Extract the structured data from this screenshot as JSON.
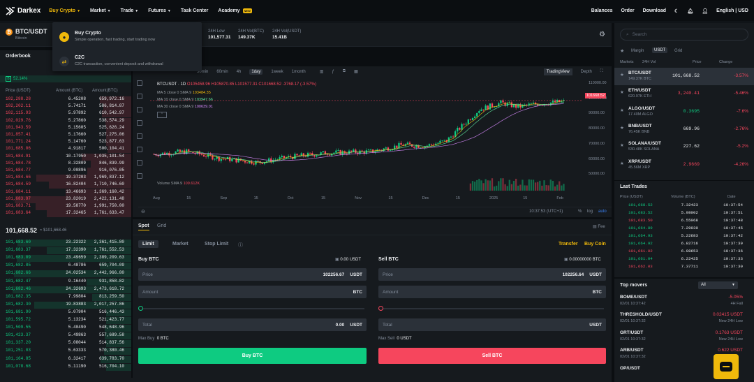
{
  "nav": {
    "logo": "Darkex",
    "items": [
      "Buy Crypto",
      "Market",
      "Trade",
      "Futures",
      "Task Center",
      "Academy"
    ],
    "academy_badge": "NEW",
    "right": [
      "Balances",
      "Order",
      "Download"
    ],
    "lang": "English | USD"
  },
  "dropdown": {
    "items": [
      {
        "title": "Buy Crypto",
        "sub": "Simple operation, fast trading, start trading now"
      },
      {
        "title": "C2C",
        "sub": "C2C transaction, convenient deposit and withdrawal"
      }
    ]
  },
  "pair": {
    "symbol": "BTC/USDT",
    "name": "Bitcoin",
    "stats": [
      {
        "label": "24H Low",
        "value": "101,577.31"
      },
      {
        "label": "24H Vol(BTC)",
        "value": "149.37K"
      },
      {
        "label": "24H Vol(USDT)",
        "value": "15.41B"
      }
    ]
  },
  "orderbook": {
    "title": "Orderbook",
    "ratio": "52.14%",
    "headers": [
      "Price (USDT)",
      "Amount (BTC)",
      "Amount(BTC)"
    ],
    "asks": [
      [
        "102,288.28",
        "6.45208",
        "659,972.16"
      ],
      [
        "102,202.11",
        "5.74171",
        "586,814.87"
      ],
      [
        "102,115.93",
        "5.97892",
        "610,542.97"
      ],
      [
        "102,029.76",
        "5.27860",
        "538,574.29"
      ],
      [
        "101,943.59",
        "5.15605",
        "525,626.24"
      ],
      [
        "101,857.41",
        "5.17660",
        "527,275.06"
      ],
      [
        "101,771.24",
        "5.14760",
        "523,877.63"
      ],
      [
        "101,685.06",
        "4.91817",
        "500,104.41"
      ],
      [
        "101,684.91",
        "10.17950",
        "1,035,101.54"
      ],
      [
        "101,684.78",
        "8.32809",
        "846,839.99"
      ],
      [
        "101,684.77",
        "9.00896",
        "916,076.05"
      ],
      [
        "101,684.66",
        "19.37203",
        "1,969,837.12"
      ],
      [
        "101,684.59",
        "16.82404",
        "1,710,746.60"
      ],
      [
        "101,684.11",
        "13.46693",
        "1,369,160.42"
      ],
      [
        "101,683.97",
        "23.82019",
        "2,422,131.48"
      ],
      [
        "101,683.71",
        "19.58770",
        "1,991,750.00"
      ],
      [
        "101,683.64",
        "17.32465",
        "1,761,633.47"
      ]
    ],
    "mid_price": "101,668.52",
    "mid_usd": "≈ $101,668.46",
    "bids": [
      [
        "101,683.60",
        "23.22322",
        "2,361,415.80"
      ],
      [
        "101,683.37",
        "17.32390",
        "1,761,552.53"
      ],
      [
        "101,683.09",
        "23.49659",
        "2,389,209.63"
      ],
      [
        "101,682.85",
        "6.48786",
        "659,704.09"
      ],
      [
        "101,682.66",
        "24.02534",
        "2,442,966.80"
      ],
      [
        "101,682.47",
        "9.16440",
        "931,858.82"
      ],
      [
        "101,682.46",
        "24.32693",
        "2,473,618.72"
      ],
      [
        "101,682.35",
        "7.99804",
        "813,259.50"
      ],
      [
        "101,682.30",
        "19.83883",
        "2,017,257.86"
      ],
      [
        "101,681.90",
        "5.07904",
        "516,446.43"
      ],
      [
        "101,595.72",
        "5.13234",
        "521,423.77"
      ],
      [
        "101,509.55",
        "5.40490",
        "548,648.96"
      ],
      [
        "101,423.37",
        "5.49863",
        "557,689.58"
      ],
      [
        "101,337.20",
        "5.08044",
        "514,837.56"
      ],
      [
        "101,251.03",
        "5.63333",
        "570,380.46"
      ],
      [
        "101,164.85",
        "6.32417",
        "639,783.70"
      ],
      [
        "101,078.68",
        "5.11190",
        "516,704.10"
      ]
    ]
  },
  "chart": {
    "timeframes": [
      "Time",
      "30min",
      "60min",
      "4h",
      "1day",
      "1week",
      "1month"
    ],
    "selected_tf": "1day",
    "views": [
      "TradingView",
      "Depth"
    ],
    "ohlc_title": "BTCUSDT · 1D",
    "ohlc": "O105458.96 H105870.85 L101577.31 C101668.52 -3768.17 (-3.57%)",
    "ma": [
      {
        "label": "MA 5 close 0 SMA 9",
        "val": "103484.35",
        "color": "#f0b90b"
      },
      {
        "label": "MA 10 close 0 SMA 9",
        "val": "103947.66",
        "color": "#5ee9a0"
      },
      {
        "label": "MA 30 close 0 SMA 9",
        "val": "100639.01",
        "color": "#d98bff"
      }
    ],
    "volume_label": "Volume SMA 9",
    "volume_val": "109.612K",
    "y_ticks": [
      "110000.00",
      "100000.00",
      "90000.00",
      "80000.00",
      "70000.00",
      "60000.00",
      "50000.00"
    ],
    "current_price": "101668.52",
    "x_ticks": [
      "Aug",
      "15",
      "Sep",
      "15",
      "Oct",
      "15",
      "Nov",
      "15",
      "Dec",
      "15",
      "2025",
      "15",
      "Feb"
    ],
    "time_readout": "10:37:53 (UTC+1)",
    "scale_opts": [
      "%",
      "log",
      "auto"
    ]
  },
  "trade": {
    "tabs": [
      "Spot",
      "Grid"
    ],
    "fee": "Fee",
    "types": [
      "Limit",
      "Market",
      "Stop Limit"
    ],
    "transfer": "Transfer",
    "buy_coin": "Buy Coin",
    "buy": {
      "title": "Buy BTC",
      "avail": "0.00 USDT",
      "price": "102256.67",
      "price_unit": "USDT",
      "amount_unit": "BTC",
      "total": "0.00",
      "total_unit": "USDT",
      "max_label": "Max Buy",
      "max_val": "0 BTC",
      "btn": "Buy BTC"
    },
    "sell": {
      "title": "Sell BTC",
      "avail": "0.00000000 BTC",
      "price": "102256.64",
      "price_unit": "USDT",
      "amount_unit": "BTC",
      "total": "",
      "total_unit": "USDT",
      "max_label": "Max Sell",
      "max_val": "0 USDT",
      "btn": "Sell BTC"
    },
    "labels": {
      "price": "Price",
      "amount": "Amount",
      "total": "Total"
    }
  },
  "markets": {
    "search_placeholder": "Search",
    "filters": [
      "Margin",
      "USDT",
      "Grid"
    ],
    "headers": [
      "Markets",
      "24H Vol",
      "Price",
      "Change"
    ],
    "rows": [
      {
        "pair": "BTC/USDT",
        "vol": "149.37K BTC",
        "price": "101,668.52",
        "chg": "-3.57%",
        "price_red": false
      },
      {
        "pair": "ETH/USDT",
        "vol": "620.97K ETH",
        "price": "3,240.41",
        "chg": "-5.46%",
        "price_red": true
      },
      {
        "pair": "ALGO/USDT",
        "vol": "17.40M ALGO",
        "price": "0.3695",
        "chg": "-7.6%",
        "price_red": false,
        "price_green": true
      },
      {
        "pair": "BNB/USDT",
        "vol": "76.45K BNB",
        "price": "669.96",
        "chg": "-2.76%",
        "price_red": false
      },
      {
        "pair": "SOLANA/USDT",
        "vol": "530.48K SOLANA",
        "price": "227.62",
        "chg": "-5.2%",
        "price_red": false
      },
      {
        "pair": "XRP/USDT",
        "vol": "45.56M XRP",
        "price": "2.9669",
        "chg": "-4.26%",
        "price_red": true
      }
    ]
  },
  "last_trades": {
    "title": "Last Trades",
    "headers": [
      "Price (USDT)",
      "Volume (BTC)",
      "Date"
    ],
    "rows": [
      [
        "101,668.52",
        "7.32423",
        "10:37:54",
        "g"
      ],
      [
        "101,683.52",
        "5.98002",
        "10:37:51",
        "g"
      ],
      [
        "101,683.50",
        "6.55068",
        "10:37:48",
        "r"
      ],
      [
        "101,664.89",
        "7.29930",
        "10:37:45",
        "g"
      ],
      [
        "101,664.93",
        "5.22683",
        "10:37:42",
        "g"
      ],
      [
        "101,664.92",
        "6.82716",
        "10:37:39",
        "g"
      ],
      [
        "101,661.02",
        "6.98653",
        "10:37:36",
        "r"
      ],
      [
        "101,661.04",
        "6.22425",
        "10:37:33",
        "g"
      ],
      [
        "101,662.03",
        "7.37711",
        "10:37:30",
        "r"
      ]
    ]
  },
  "top_movers": {
    "title": "Top movers",
    "filter": "All",
    "rows": [
      {
        "name": "BOME/USDT",
        "time": "02/01 10:37:42",
        "chg": "-5.05%",
        "sub": "4H Fall",
        "cls": "red"
      },
      {
        "name": "THRESHOLD/USDT",
        "time": "02/01 10:37:32",
        "chg": "0.02415 USDT",
        "sub": "New 24H Low",
        "cls": "red"
      },
      {
        "name": "GRT/USDT",
        "time": "02/01 10:37:32",
        "chg": "0.1763 USDT",
        "sub": "New 24H Low",
        "cls": "red"
      },
      {
        "name": "ARB/USDT",
        "time": "02/01 10:37:32",
        "chg": "0.622 USDT",
        "sub": "",
        "cls": "red"
      },
      {
        "name": "OP/USDT",
        "time": "",
        "chg": "",
        "sub": "",
        "cls": "red"
      }
    ]
  },
  "colors": {
    "up": "#0ecb81",
    "down": "#f6465d",
    "accent": "#f0b90b"
  }
}
